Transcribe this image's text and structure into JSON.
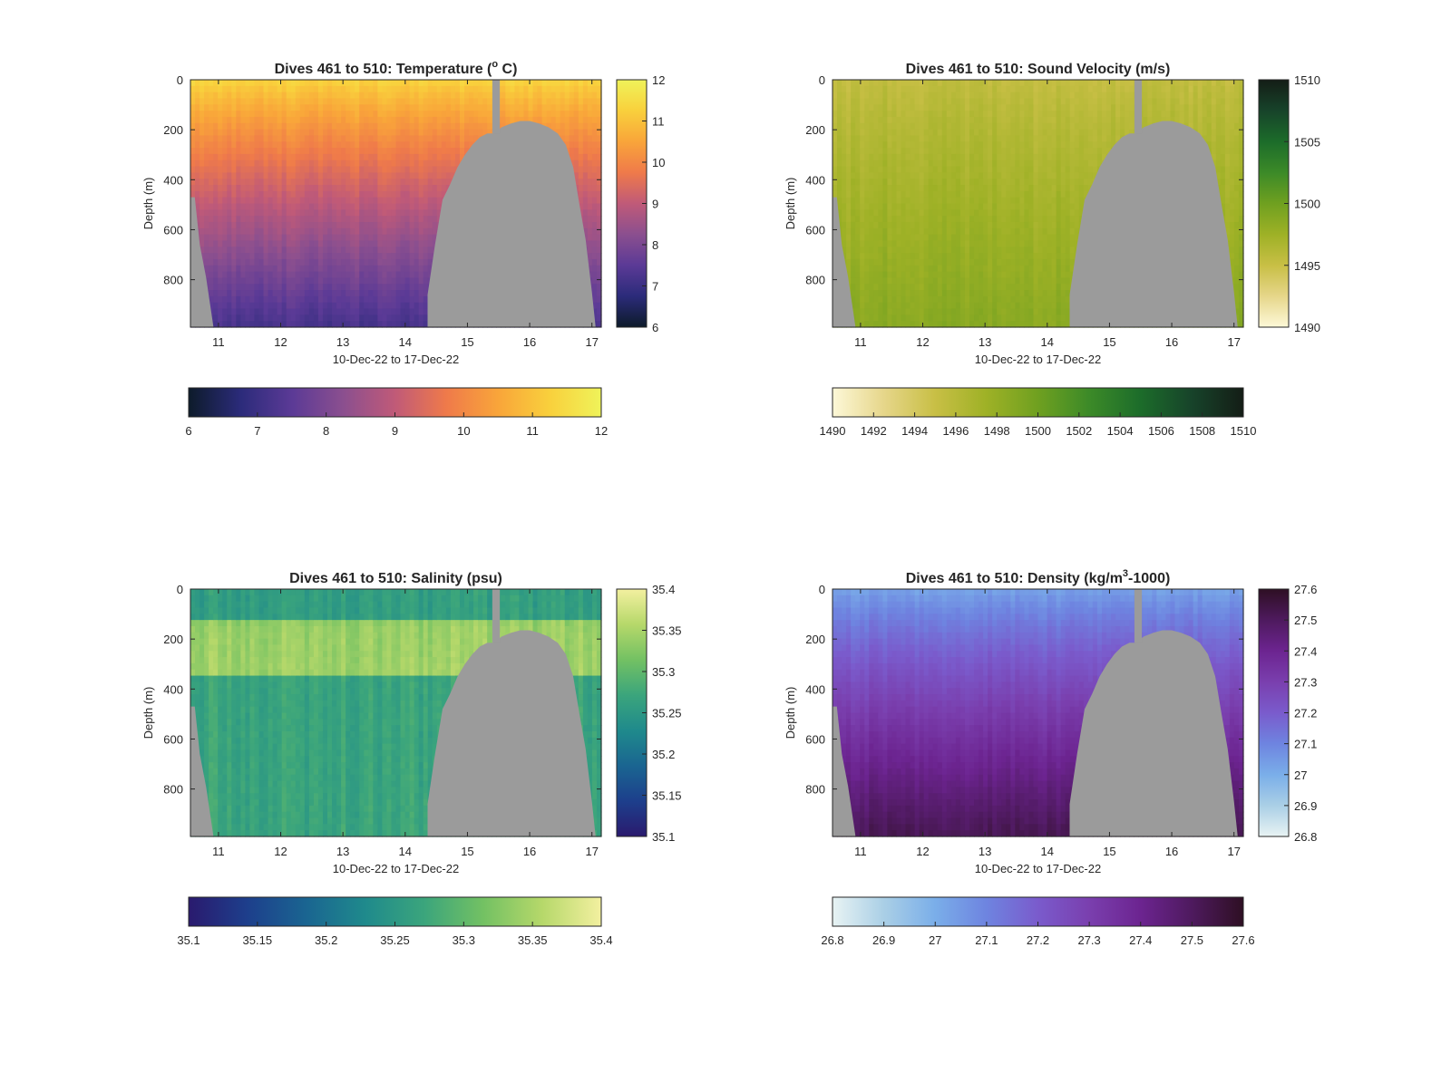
{
  "chart_data": [
    {
      "type": "heatmap",
      "title": "Dives 461 to 510: Temperature (° C)",
      "title_parts": {
        "pre": "Dives 461 to 510: Temperature (",
        "sup": "o",
        "post": " C)"
      },
      "xlabel": "10-Dec-22 to 17-Dec-22",
      "ylabel": "Depth (m)",
      "xlim": [
        10.55,
        17.15
      ],
      "ylim": [
        0,
        990
      ],
      "xticks": [
        "11",
        "12",
        "13",
        "14",
        "15",
        "16",
        "17"
      ],
      "yticks": [
        "0",
        "200",
        "400",
        "600",
        "800"
      ],
      "colorbar_ticks": [
        "6",
        "7",
        "8",
        "9",
        "10",
        "11",
        "12"
      ],
      "colorbar_range": [
        6,
        12
      ],
      "horizontal_colorbar_ticks": [
        "6",
        "7",
        "8",
        "9",
        "10",
        "11",
        "12"
      ],
      "colormap": [
        "#0d1b2a",
        "#2b2b7a",
        "#5b3a96",
        "#8b4f8f",
        "#c05a78",
        "#ef7a4a",
        "#f9a53a",
        "#f9d03c",
        "#eff35a"
      ],
      "surface_value": 11.4,
      "bottom_value": 7.2
    },
    {
      "type": "heatmap",
      "title": "Dives 461 to 510: Sound Velocity (m/s)",
      "title_parts": {
        "pre": "Dives 461 to 510: Sound Velocity (m/s)",
        "sup": "",
        "post": ""
      },
      "xlabel": "10-Dec-22 to 17-Dec-22",
      "ylabel": "Depth (m)",
      "xlim": [
        10.55,
        17.15
      ],
      "ylim": [
        0,
        990
      ],
      "xticks": [
        "11",
        "12",
        "13",
        "14",
        "15",
        "16",
        "17"
      ],
      "yticks": [
        "0",
        "200",
        "400",
        "600",
        "800"
      ],
      "colorbar_ticks": [
        "1490",
        "1495",
        "1500",
        "1505",
        "1510"
      ],
      "colorbar_range": [
        1490,
        1510
      ],
      "horizontal_colorbar_ticks": [
        "1490",
        "1492",
        "1494",
        "1496",
        "1498",
        "1500",
        "1502",
        "1504",
        "1506",
        "1508",
        "1510"
      ],
      "colormap": [
        "#fdf8d8",
        "#e6d68a",
        "#c8bf45",
        "#9eb126",
        "#6fa020",
        "#3c8a28",
        "#1c6c2a",
        "#17432a",
        "#141d16"
      ],
      "surface_value": 1495.3,
      "bottom_value": 1498.6
    },
    {
      "type": "heatmap",
      "title": "Dives 461 to 510: Salinity (psu)",
      "title_parts": {
        "pre": "Dives 461 to 510: Salinity (psu)",
        "sup": "",
        "post": ""
      },
      "xlabel": "10-Dec-22 to 17-Dec-22",
      "ylabel": "Depth (m)",
      "xlim": [
        10.55,
        17.15
      ],
      "ylim": [
        0,
        990
      ],
      "xticks": [
        "11",
        "12",
        "13",
        "14",
        "15",
        "16",
        "17"
      ],
      "yticks": [
        "0",
        "200",
        "400",
        "600",
        "800"
      ],
      "colorbar_ticks": [
        "35.4",
        "35.35",
        "35.3",
        "35.25",
        "35.2",
        "35.15",
        "35.1"
      ],
      "colorbar_range": [
        35.1,
        35.4
      ],
      "horizontal_colorbar_ticks": [
        "35.1",
        "35.15",
        "35.2",
        "35.25",
        "35.3",
        "35.35",
        "35.4"
      ],
      "colormap": [
        "#2a1a6e",
        "#1d3f8c",
        "#1a6591",
        "#1f8a8c",
        "#3ba57c",
        "#73c163",
        "#b6d86a",
        "#f3f0a0"
      ],
      "surface_value": 35.26,
      "bottom_value": 35.27
    },
    {
      "type": "heatmap",
      "title": "Dives 461 to 510: Density (kg/m³-1000)",
      "title_parts": {
        "pre": "Dives 461 to 510: Density (kg/m",
        "sup": "3",
        "post": "-1000)"
      },
      "xlabel": "10-Dec-22 to 17-Dec-22",
      "ylabel": "Depth (m)",
      "xlim": [
        10.55,
        17.15
      ],
      "ylim": [
        0,
        990
      ],
      "xticks": [
        "11",
        "12",
        "13",
        "14",
        "15",
        "16",
        "17"
      ],
      "yticks": [
        "0",
        "200",
        "400",
        "600",
        "800"
      ],
      "colorbar_ticks": [
        "27.6",
        "27.5",
        "27.4",
        "27.3",
        "27.2",
        "27.1",
        "27",
        "26.9",
        "26.8"
      ],
      "colorbar_range": [
        26.8,
        27.6
      ],
      "horizontal_colorbar_ticks": [
        "26.8",
        "26.9",
        "27",
        "27.1",
        "27.2",
        "27.3",
        "27.4",
        "27.5",
        "27.6"
      ],
      "colormap": [
        "#e8f3f3",
        "#aacfe6",
        "#7aaee9",
        "#6e84e0",
        "#7a5bcc",
        "#7a3fae",
        "#6c2490",
        "#4e1a5e",
        "#2e0f23"
      ],
      "surface_value": 27.02,
      "bottom_value": 27.52
    }
  ]
}
